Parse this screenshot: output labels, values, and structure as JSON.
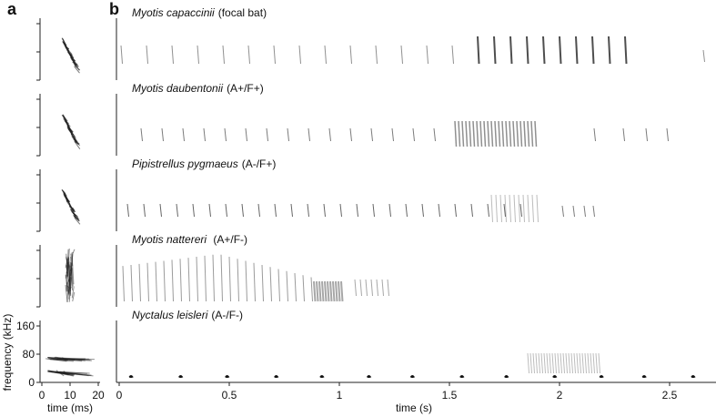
{
  "panel_labels": {
    "a": "a",
    "b": "b"
  },
  "rows": [
    {
      "species": "Myotis capaccinii",
      "note": "(focal bat)"
    },
    {
      "species": "Myotis daubentonii",
      "note": "(A+/F+)"
    },
    {
      "species": "Pipistrellus pygmaeus",
      "note": "(A-/F+)"
    },
    {
      "species": "Myotis nattereri",
      "note": " (A+/F-)"
    },
    {
      "species": "Nyctalus leisleri",
      "note": "(A-/F-)"
    }
  ],
  "axis_a": {
    "x_label": "time (ms)",
    "x_ticks": [
      "0",
      "10",
      "20"
    ],
    "y_label": "frequency (kHz)",
    "y_ticks": [
      "0",
      "80",
      "160"
    ]
  },
  "axis_b": {
    "x_label": "time (s)",
    "x_ticks": [
      "0",
      "0.5",
      "1",
      "1.5",
      "2",
      "2.5"
    ]
  }
}
